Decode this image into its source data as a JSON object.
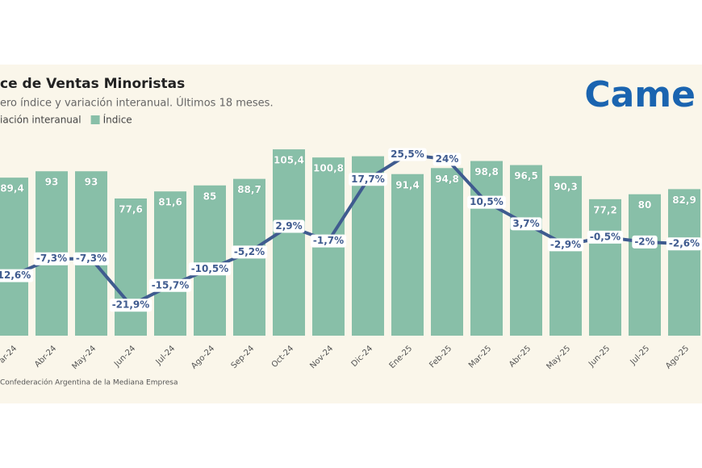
{
  "chart_data": {
    "type": "bar",
    "title": "ce de Ventas Minoristas",
    "subtitle": "ero índice y variación interanual. Últimos 18 meses.",
    "source": "Confederación Argentina de la Mediana Empresa",
    "logo": "Came",
    "categories": [
      "ar-24",
      "Abr-24",
      "May-24",
      "Jun-24",
      "Jul-24",
      "Ago-24",
      "Sep-24",
      "Oct-24",
      "Nov-24",
      "Dic-24",
      "Ene-25",
      "Feb-25",
      "Mar-25",
      "Abr-25",
      "May-25",
      "Jun-25",
      "Jul-25",
      "Ago-25"
    ],
    "series": [
      {
        "name": "iación interanual",
        "type": "line",
        "axis": "y2",
        "color": "#3f5b8f",
        "values": [
          -12.6,
          -7.3,
          -7.3,
          -21.9,
          -15.7,
          -10.5,
          -5.2,
          2.9,
          -1.7,
          17.7,
          25.5,
          24,
          10.5,
          3.7,
          -2.9,
          -0.5,
          -2,
          -2.6
        ],
        "value_labels": [
          "-12,6%",
          "-7,3%",
          "-7,3%",
          "-21,9%",
          "-15,7%",
          "-10,5%",
          "-5,2%",
          "2,9%",
          "-1,7%",
          "17,7%",
          "25,5%",
          "24%",
          "10,5%",
          "3,7%",
          "-2,9%",
          "-0,5%",
          "-2%",
          "-2,6%"
        ]
      },
      {
        "name": "Índice",
        "type": "bar",
        "color": "#88bfa8",
        "values": [
          89.4,
          93,
          93,
          77.6,
          81.6,
          85,
          88.7,
          105.4,
          100.8,
          101.5,
          91.4,
          94.8,
          98.8,
          96.5,
          90.3,
          77.2,
          80,
          82.9
        ],
        "value_labels": [
          "89,4",
          "93",
          "93",
          "77,6",
          "81,6",
          "85",
          "88,7",
          "105,4",
          "100,8",
          null,
          "91,4",
          "94,8",
          "98,8",
          "96,5",
          "90,3",
          "77,2",
          "80",
          "82,9"
        ]
      }
    ],
    "ylim": [
      0,
      110
    ],
    "y2lim": [
      -31.5,
      29.7
    ]
  }
}
